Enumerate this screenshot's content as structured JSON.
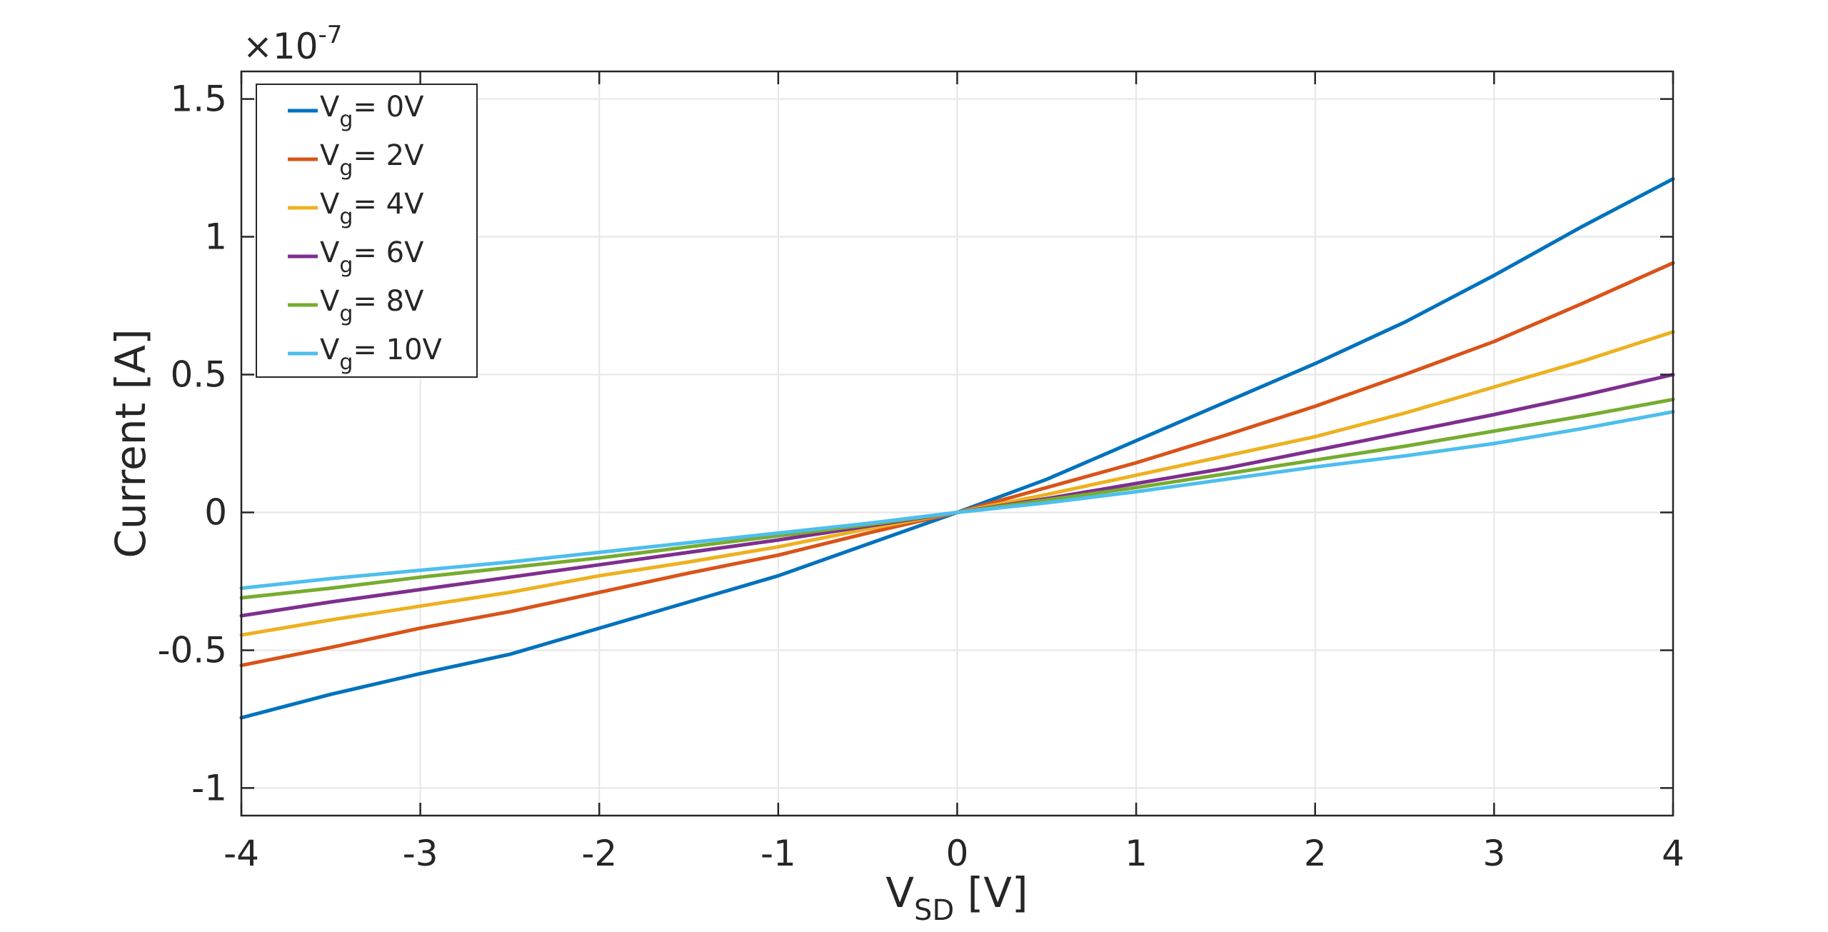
{
  "chart_data": {
    "type": "line",
    "title": "",
    "xlabel": {
      "main": "V",
      "sub": "SD",
      "unit": " [V]"
    },
    "ylabel": "Current [A]",
    "y_exponent": {
      "prefix": "×10",
      "power": "-7"
    },
    "xlim": [
      -4,
      4
    ],
    "ylim": [
      -1.1,
      1.6
    ],
    "xticks": [
      -4,
      -3,
      -2,
      -1,
      0,
      1,
      2,
      3,
      4
    ],
    "xtick_labels": [
      "-4",
      "-3",
      "-2",
      "-1",
      "0",
      "1",
      "2",
      "3",
      "4"
    ],
    "yticks": [
      -1,
      -0.5,
      0,
      0.5,
      1,
      1.5
    ],
    "ytick_labels": [
      "-1",
      "-0.5",
      "0",
      "0.5",
      "1",
      "1.5"
    ],
    "grid": true,
    "legend_position": "top-left",
    "series": [
      {
        "name": "V_g = 0V",
        "legend": {
          "main": "V",
          "sub": "g",
          "rest": "= 0V"
        },
        "color": "#0072BD",
        "x": [
          -4,
          -3.5,
          -3,
          -2.5,
          -2,
          -1.5,
          -1,
          -0.5,
          0,
          0.5,
          1,
          1.5,
          2,
          2.5,
          3,
          3.5,
          4
        ],
        "y": [
          -0.745,
          -0.66,
          -0.585,
          -0.515,
          -0.42,
          -0.325,
          -0.23,
          -0.115,
          0,
          0.12,
          0.26,
          0.4,
          0.54,
          0.69,
          0.86,
          1.04,
          1.21
        ]
      },
      {
        "name": "V_g = 2V",
        "legend": {
          "main": "V",
          "sub": "g",
          "rest": "= 2V"
        },
        "color": "#D95319",
        "x": [
          -4,
          -3.5,
          -3,
          -2.5,
          -2,
          -1.5,
          -1,
          -0.5,
          0,
          0.5,
          1,
          1.5,
          2,
          2.5,
          3,
          3.5,
          4
        ],
        "y": [
          -0.555,
          -0.49,
          -0.42,
          -0.36,
          -0.29,
          -0.22,
          -0.155,
          -0.075,
          0,
          0.09,
          0.18,
          0.28,
          0.385,
          0.5,
          0.62,
          0.76,
          0.905
        ]
      },
      {
        "name": "V_g = 4V",
        "legend": {
          "main": "V",
          "sub": "g",
          "rest": "= 4V"
        },
        "color": "#EDB120",
        "x": [
          -4,
          -3.5,
          -3,
          -2.5,
          -2,
          -1.5,
          -1,
          -0.5,
          0,
          0.5,
          1,
          1.5,
          2,
          2.5,
          3,
          3.5,
          4
        ],
        "y": [
          -0.445,
          -0.39,
          -0.34,
          -0.29,
          -0.23,
          -0.18,
          -0.125,
          -0.06,
          0,
          0.065,
          0.135,
          0.205,
          0.275,
          0.36,
          0.455,
          0.55,
          0.655
        ]
      },
      {
        "name": "V_g = 6V",
        "legend": {
          "main": "V",
          "sub": "g",
          "rest": "= 6V"
        },
        "color": "#7E2F8E",
        "x": [
          -4,
          -3.5,
          -3,
          -2.5,
          -2,
          -1.5,
          -1,
          -0.5,
          0,
          0.5,
          1,
          1.5,
          2,
          2.5,
          3,
          3.5,
          4
        ],
        "y": [
          -0.375,
          -0.325,
          -0.28,
          -0.235,
          -0.19,
          -0.145,
          -0.1,
          -0.05,
          0,
          0.05,
          0.105,
          0.16,
          0.225,
          0.29,
          0.355,
          0.425,
          0.5
        ]
      },
      {
        "name": "V_g = 8V",
        "legend": {
          "main": "V",
          "sub": "g",
          "rest": "= 8V"
        },
        "color": "#77AC30",
        "x": [
          -4,
          -3.5,
          -3,
          -2.5,
          -2,
          -1.5,
          -1,
          -0.5,
          0,
          0.5,
          1,
          1.5,
          2,
          2.5,
          3,
          3.5,
          4
        ],
        "y": [
          -0.31,
          -0.275,
          -0.235,
          -0.2,
          -0.165,
          -0.125,
          -0.085,
          -0.045,
          0,
          0.045,
          0.09,
          0.14,
          0.19,
          0.24,
          0.295,
          0.35,
          0.41
        ]
      },
      {
        "name": "V_g = 10V",
        "legend": {
          "main": "V",
          "sub": "g",
          "rest": "= 10V"
        },
        "color": "#4DBEEE",
        "x": [
          -4,
          -3.5,
          -3,
          -2.5,
          -2,
          -1.5,
          -1,
          -0.5,
          0,
          0.5,
          1,
          1.5,
          2,
          2.5,
          3,
          3.5,
          4
        ],
        "y": [
          -0.275,
          -0.24,
          -0.21,
          -0.18,
          -0.145,
          -0.11,
          -0.075,
          -0.04,
          0,
          0.035,
          0.075,
          0.12,
          0.165,
          0.205,
          0.25,
          0.305,
          0.365
        ]
      }
    ]
  }
}
